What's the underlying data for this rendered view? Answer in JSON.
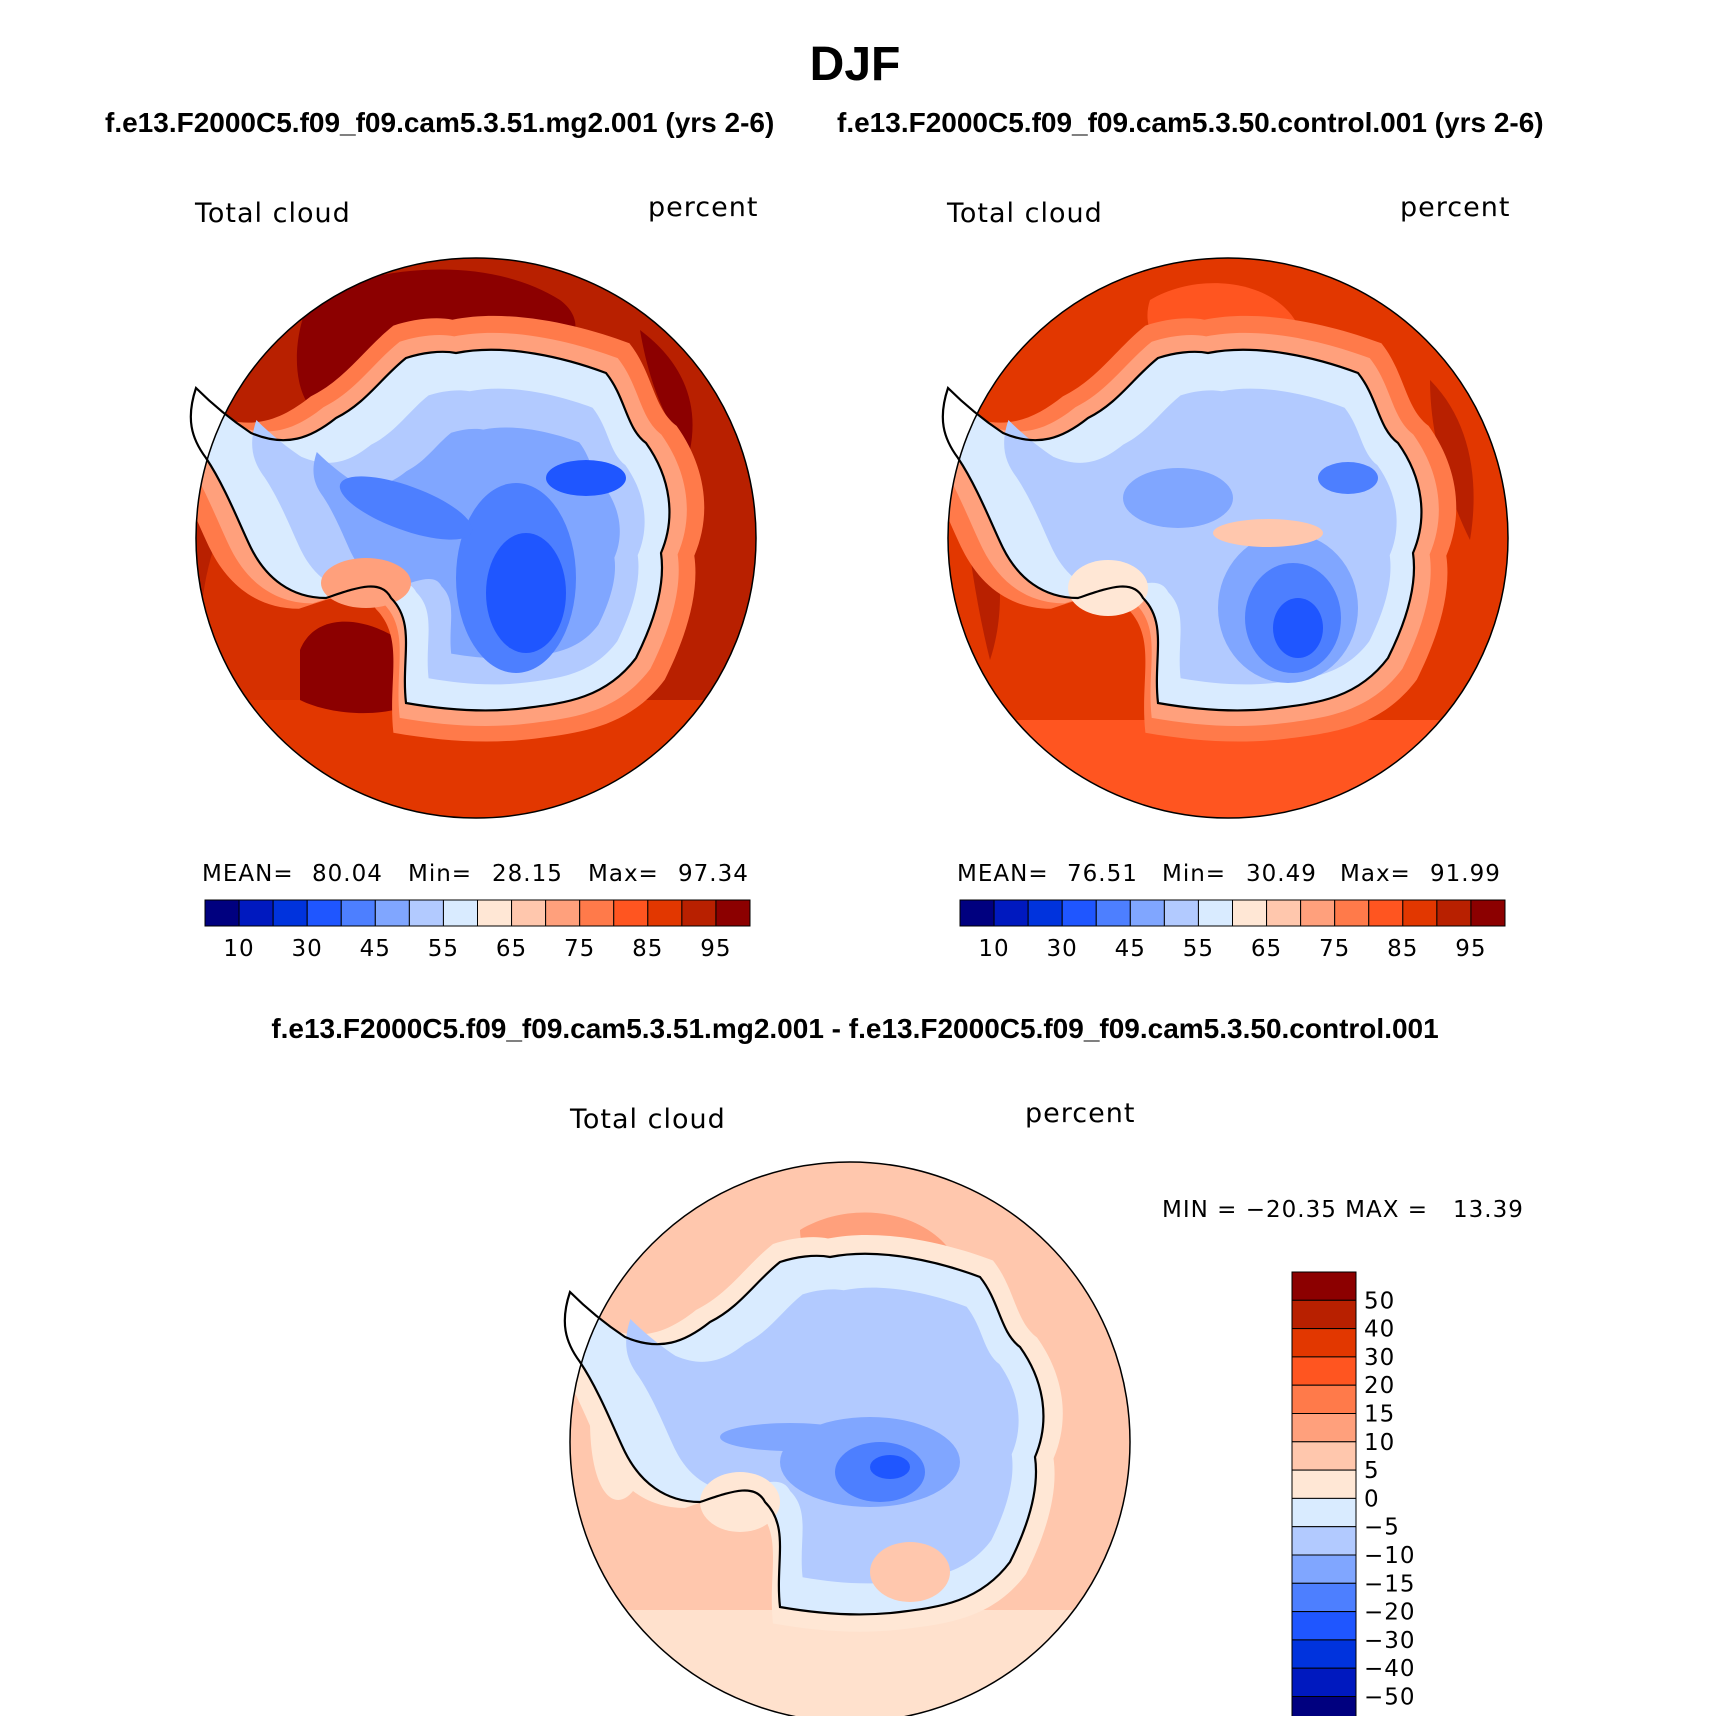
{
  "title": "DJF",
  "panel_left": {
    "case": "f.e13.F2000C5.f09_f09.cam5.3.51.mg2.001 (yrs 2-6)",
    "variable": "Total cloud",
    "units": "percent",
    "stats": {
      "mean_label": "MEAN=",
      "mean": "80.04",
      "min_label": "Min=",
      "min": "28.15",
      "max_label": "Max=",
      "max": "97.34"
    }
  },
  "panel_right": {
    "case": "f.e13.F2000C5.f09_f09.cam5.3.50.control.001 (yrs 2-6)",
    "variable": "Total cloud",
    "units": "percent",
    "stats": {
      "mean_label": "MEAN=",
      "mean": "76.51",
      "min_label": "Min=",
      "min": "30.49",
      "max_label": "Max=",
      "max": "91.99"
    }
  },
  "panel_diff": {
    "case": "f.e13.F2000C5.f09_f09.cam5.3.51.mg2.001 - f.e13.F2000C5.f09_f09.cam5.3.50.control.001",
    "variable": "Total cloud",
    "units": "percent",
    "minmax": "MIN = −20.35 MAX =   13.39"
  },
  "colorbar_abs": {
    "colors": [
      "#00007f",
      "#0019bf",
      "#0033dd",
      "#1f56ff",
      "#4d7fff",
      "#80a6ff",
      "#b2caff",
      "#d9ebff",
      "#ffe7d5",
      "#ffc7ad",
      "#ffa07c",
      "#ff7a4a",
      "#ff5520",
      "#e23700",
      "#b82000",
      "#8c0000"
    ],
    "labels": [
      "10",
      "30",
      "45",
      "55",
      "65",
      "75",
      "85",
      "95"
    ]
  },
  "colorbar_diff": {
    "colors": [
      "#00007f",
      "#0019bf",
      "#0033dd",
      "#1f56ff",
      "#4d7fff",
      "#80a6ff",
      "#b2caff",
      "#d9ebff",
      "#ffe7d5",
      "#ffc7ad",
      "#ffa07c",
      "#ff7a4a",
      "#ff5520",
      "#e23700",
      "#b82000",
      "#8c0000"
    ],
    "labels": [
      "50",
      "40",
      "30",
      "20",
      "15",
      "10",
      "5",
      "0",
      "−5",
      "−10",
      "−15",
      "−20",
      "−30",
      "−40",
      "−50"
    ]
  }
}
